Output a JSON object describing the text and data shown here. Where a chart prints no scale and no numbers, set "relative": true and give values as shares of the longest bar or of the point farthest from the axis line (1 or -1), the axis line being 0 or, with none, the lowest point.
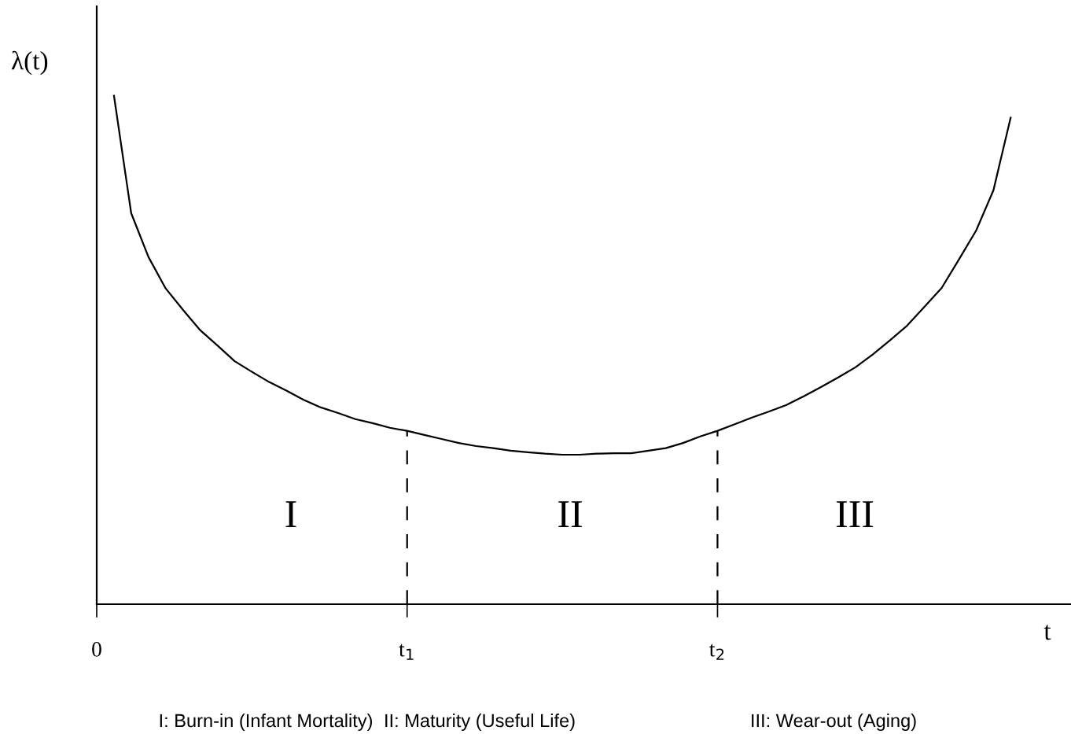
{
  "chart_data": {
    "type": "line",
    "relative": true,
    "xlabel": "t",
    "ylabel": "λ(t)",
    "categories": [
      "0",
      null,
      null,
      null,
      null,
      null,
      null,
      null,
      null,
      null,
      null,
      null,
      null,
      null,
      null,
      null,
      null,
      null,
      "t$_{1}$",
      null,
      null,
      null,
      null,
      null,
      null,
      null,
      null,
      null,
      null,
      null,
      null,
      null,
      null,
      null,
      null,
      null,
      "t$_{2}$",
      null,
      null,
      null,
      null,
      null,
      null,
      null,
      null,
      null,
      null,
      null,
      null,
      null,
      null,
      null,
      null,
      null,
      null,
      null,
      null
    ],
    "series": [
      {
        "color": "#000000",
        "values": [
          null,
          1.0,
          0.769,
          0.683,
          0.621,
          0.579,
          0.539,
          0.509,
          0.478,
          0.457,
          0.437,
          0.42,
          0.402,
          0.387,
          0.376,
          0.364,
          0.356,
          0.347,
          0.341,
          0.333,
          0.325,
          0.317,
          0.311,
          0.307,
          0.302,
          0.299,
          0.296,
          0.294,
          0.294,
          0.296,
          0.297,
          0.297,
          0.302,
          0.307,
          0.317,
          0.33,
          0.341,
          0.354,
          0.367,
          0.379,
          0.392,
          0.409,
          0.427,
          0.446,
          0.466,
          0.491,
          0.519,
          0.548,
          0.585,
          0.622,
          0.678,
          0.735,
          0.814,
          0.957,
          null,
          null,
          null
        ]
      }
    ],
    "ref_lines": [
      {
        "axis": "x",
        "value": "t$_{1}$",
        "label": null,
        "color": "#000000",
        "line_style": "dashed"
      },
      {
        "axis": "x",
        "value": "t$_{2}$",
        "label": null,
        "color": "#000000",
        "line_style": "dashed"
      }
    ],
    "annotations": [
      "I",
      "II",
      "III",
      "I: Burn-in (Infant Mortality)",
      "II: Maturity (Useful Life)",
      "III: Wear-out (Aging)"
    ],
    "grid": false,
    "marker": "none",
    "line_style": "solid"
  }
}
